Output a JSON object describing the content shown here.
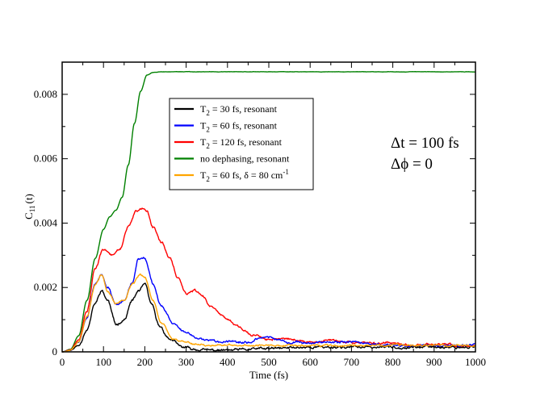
{
  "chart_data": {
    "type": "line",
    "title": "",
    "xlabel": "Time (fs)",
    "ylabel": {
      "base": "C",
      "sub": "11",
      "tail": "(t)"
    },
    "xlim": [
      0,
      1000
    ],
    "ylim": [
      0,
      0.009
    ],
    "xticks": [
      0,
      100,
      200,
      300,
      400,
      500,
      600,
      700,
      800,
      900,
      1000
    ],
    "xtick_labels": [
      "0",
      "100",
      "200",
      "300",
      "400",
      "500",
      "600",
      "700",
      "800",
      "900",
      "1000"
    ],
    "yticks": [
      0,
      0.002,
      0.004,
      0.006,
      0.008
    ],
    "ytick_labels": [
      "0",
      "0.002",
      "0.004",
      "0.006",
      "0.008"
    ],
    "grid": false,
    "legend_position": "upper-center",
    "annotations": [
      "Δt = 100 fs",
      "Δϕ = 0"
    ],
    "series": [
      {
        "name": "T2 = 30 fs, resonant",
        "legend": {
          "pre": "T",
          "sub": "2",
          "post": " = 30 fs, resonant",
          "sup": ""
        },
        "color": "#000000",
        "noise": 0.00011,
        "seed": 11,
        "x": [
          0,
          20,
          40,
          60,
          80,
          95,
          110,
          130,
          150,
          170,
          185,
          200,
          215,
          235,
          260,
          290,
          320,
          360,
          400,
          500,
          600,
          700,
          800,
          900,
          1000
        ],
        "y": [
          0,
          5e-05,
          0.0002,
          0.0007,
          0.0015,
          0.0019,
          0.0016,
          0.00085,
          0.001,
          0.0016,
          0.0019,
          0.0021,
          0.0015,
          0.0008,
          0.0004,
          0.00015,
          8e-05,
          5e-05,
          5e-05,
          0.0001,
          0.00015,
          0.00015,
          0.00015,
          0.00015,
          0.00015
        ]
      },
      {
        "name": "T2 = 60 fs, resonant",
        "legend": {
          "pre": "T",
          "sub": "2",
          "post": " = 60 fs, resonant",
          "sup": ""
        },
        "color": "#0000ff",
        "noise": 0.0001,
        "seed": 22,
        "x": [
          0,
          20,
          40,
          60,
          80,
          95,
          110,
          130,
          150,
          170,
          185,
          200,
          220,
          240,
          270,
          300,
          330,
          360,
          400,
          450,
          500,
          550,
          600,
          700,
          800,
          900,
          1000
        ],
        "y": [
          0,
          5e-05,
          0.0003,
          0.0011,
          0.0021,
          0.0024,
          0.002,
          0.0015,
          0.0016,
          0.0022,
          0.0029,
          0.0029,
          0.0021,
          0.0014,
          0.0009,
          0.0006,
          0.0004,
          0.00035,
          0.0003,
          0.0003,
          0.00045,
          0.0003,
          0.0003,
          0.0003,
          0.0002,
          0.0002,
          0.0002
        ]
      },
      {
        "name": "T2 = 120 fs, resonant",
        "legend": {
          "pre": "T",
          "sub": "2",
          "post": " = 120 fs, resonant",
          "sup": ""
        },
        "color": "#ff0000",
        "noise": 0.0001,
        "seed": 33,
        "x": [
          0,
          20,
          40,
          60,
          80,
          100,
          120,
          140,
          160,
          180,
          195,
          205,
          220,
          240,
          260,
          280,
          300,
          320,
          340,
          360,
          380,
          400,
          420,
          440,
          460,
          500,
          550,
          600,
          650,
          700,
          750,
          800,
          850,
          900,
          950,
          1000
        ],
        "y": [
          0,
          6e-05,
          0.0004,
          0.0013,
          0.0026,
          0.0032,
          0.003,
          0.0032,
          0.0039,
          0.0044,
          0.0045,
          0.0044,
          0.0039,
          0.0034,
          0.0029,
          0.0023,
          0.0018,
          0.0019,
          0.0017,
          0.0014,
          0.0012,
          0.001,
          0.0008,
          0.0007,
          0.0005,
          0.0004,
          0.0004,
          0.0003,
          0.00035,
          0.0003,
          0.00025,
          0.0003,
          0.0002,
          0.00025,
          0.0002,
          0.0002
        ]
      },
      {
        "name": "no dephasing, resonant",
        "legend": {
          "pre": "no dephasing, resonant",
          "sub": "",
          "post": "",
          "sup": ""
        },
        "color": "#008000",
        "noise": 1.2e-05,
        "seed": 44,
        "x": [
          0,
          20,
          40,
          60,
          80,
          100,
          115,
          130,
          145,
          160,
          175,
          190,
          205,
          220,
          240,
          260,
          300,
          400,
          500,
          600,
          700,
          800,
          900,
          1000
        ],
        "y": [
          0,
          8e-05,
          0.0005,
          0.0016,
          0.0029,
          0.0038,
          0.0042,
          0.0044,
          0.0048,
          0.0058,
          0.0071,
          0.0081,
          0.0086,
          0.00868,
          0.0087,
          0.0087,
          0.0087,
          0.0087,
          0.0087,
          0.0087,
          0.0087,
          0.0087,
          0.0087,
          0.0087
        ]
      },
      {
        "name": "T2 = 60 fs, δ = 80 cm-1",
        "legend": {
          "pre": "T",
          "sub": "2",
          "post": " = 60 fs, δ = 80 cm",
          "sup": "-1"
        },
        "color": "#ffa500",
        "noise": 8e-05,
        "seed": 55,
        "x": [
          0,
          20,
          40,
          60,
          80,
          95,
          110,
          130,
          150,
          170,
          190,
          200,
          220,
          240,
          270,
          300,
          330,
          360,
          400,
          500,
          600,
          700,
          800,
          900,
          1000
        ],
        "y": [
          0,
          5e-05,
          0.0003,
          0.0011,
          0.0021,
          0.0024,
          0.0019,
          0.0015,
          0.0016,
          0.0021,
          0.0024,
          0.0023,
          0.0016,
          0.0009,
          0.0004,
          0.0003,
          0.00025,
          0.0002,
          0.0002,
          0.0002,
          0.0002,
          0.0002,
          0.0002,
          0.0002,
          0.0002
        ]
      }
    ]
  }
}
